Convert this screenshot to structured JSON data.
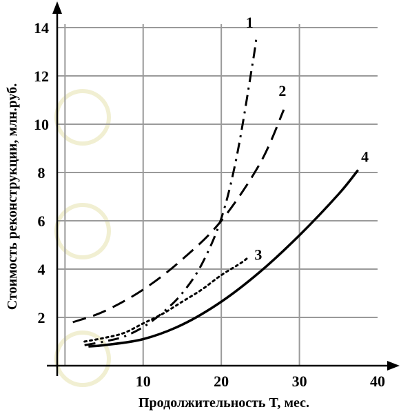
{
  "chart_data": {
    "type": "line",
    "xlabel": "Продолжительность T, мес.",
    "ylabel": "Стоимость реконструкции, млн.руб.",
    "xlim": [
      -1,
      40
    ],
    "ylim": [
      0,
      14
    ],
    "x_ticks": [
      10,
      20,
      30,
      40
    ],
    "y_ticks": [
      2,
      4,
      6,
      8,
      10,
      12,
      14
    ],
    "grid": true,
    "series": [
      {
        "name": "1",
        "style": "dash-dot",
        "points": [
          [
            2.5,
            0.85
          ],
          [
            5,
            1.0
          ],
          [
            7.5,
            1.2
          ],
          [
            10,
            1.6
          ],
          [
            12.5,
            2.2
          ],
          [
            15,
            3.0
          ],
          [
            17.5,
            4.2
          ],
          [
            20,
            6.1
          ],
          [
            22,
            8.7
          ],
          [
            24,
            12.5
          ],
          [
            24.5,
            13.6
          ]
        ]
      },
      {
        "name": "2",
        "style": "dashed",
        "points": [
          [
            1,
            1.8
          ],
          [
            5,
            2.25
          ],
          [
            10,
            3.15
          ],
          [
            15,
            4.4
          ],
          [
            20,
            6.0
          ],
          [
            25,
            8.4
          ],
          [
            28,
            10.6
          ]
        ]
      },
      {
        "name": "3",
        "style": "dotted",
        "points": [
          [
            2.5,
            1.0
          ],
          [
            5,
            1.15
          ],
          [
            7.5,
            1.35
          ],
          [
            10,
            1.75
          ],
          [
            12.5,
            2.15
          ],
          [
            15,
            2.65
          ],
          [
            17.5,
            3.15
          ],
          [
            20,
            3.75
          ],
          [
            22.5,
            4.25
          ],
          [
            23.5,
            4.5
          ]
        ]
      },
      {
        "name": "4",
        "style": "solid",
        "points": [
          [
            3,
            0.8
          ],
          [
            5,
            0.85
          ],
          [
            10,
            1.1
          ],
          [
            15,
            1.7
          ],
          [
            20,
            2.65
          ],
          [
            25,
            3.9
          ],
          [
            30,
            5.4
          ],
          [
            35,
            7.1
          ],
          [
            37.5,
            8.1
          ]
        ]
      }
    ]
  }
}
